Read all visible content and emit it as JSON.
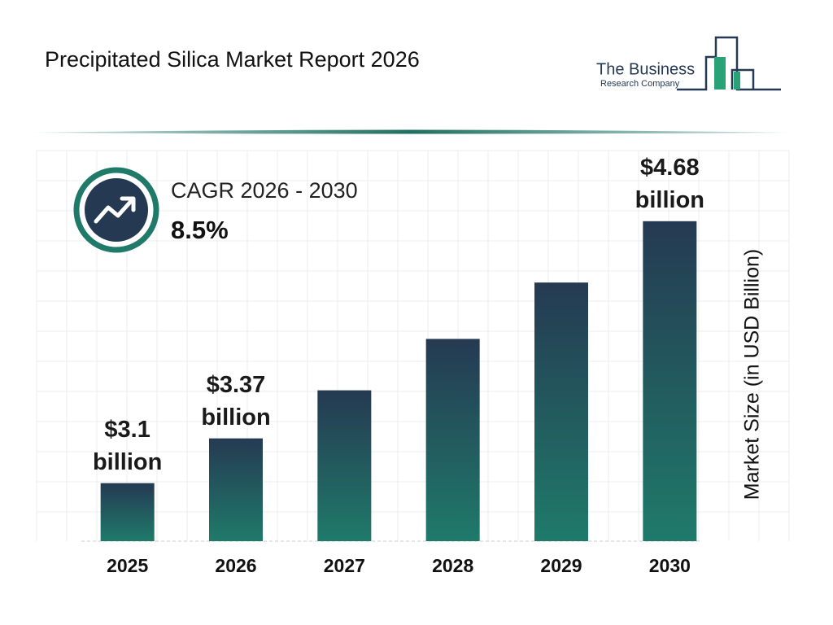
{
  "chart_data": {
    "type": "bar",
    "title": "Precipitated Silica Market Report 2026",
    "annotation_title": "CAGR 2026 - 2030",
    "annotation_value": "8.5%",
    "y_label": "Market Size (in USD Billion)",
    "categories": [
      "2025",
      "2026",
      "2027",
      "2028",
      "2029",
      "2030"
    ],
    "values": [
      3.1,
      3.37,
      3.66,
      3.97,
      4.31,
      4.68
    ],
    "value_labels": [
      "$3.1 billion",
      "$3.37 billion",
      null,
      null,
      null,
      "$4.68 billion"
    ],
    "colors": [
      "#253a52",
      "#1f7a6a"
    ],
    "ylim": [
      2.75,
      4.9
    ],
    "grid": true
  },
  "logo": {
    "line1": "The Business",
    "line2": "Research Company"
  }
}
